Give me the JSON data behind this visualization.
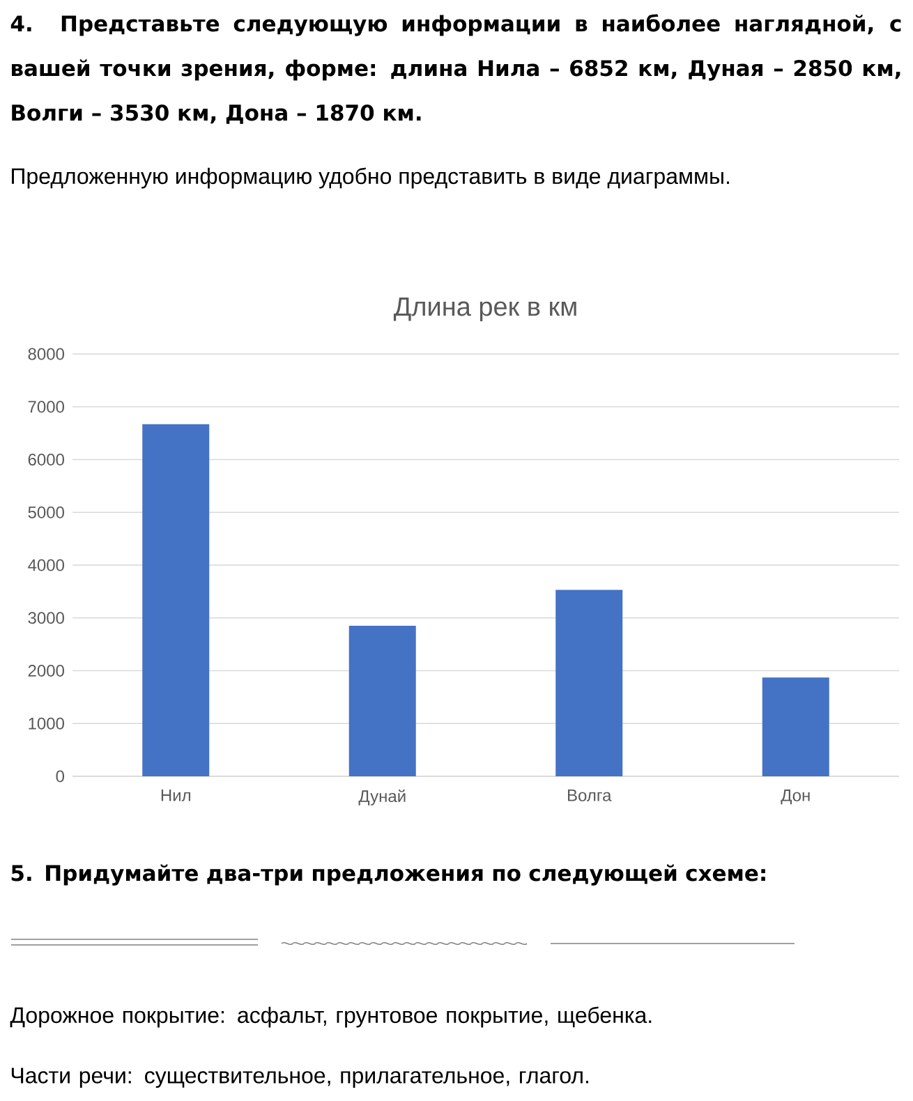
{
  "chart_data": {
    "type": "bar",
    "title": "Длина рек в км",
    "categories": [
      "Нил",
      "Дунай",
      "Волга",
      "Дон"
    ],
    "values": [
      6670,
      2850,
      3530,
      1870
    ],
    "color": "#4472c4",
    "ylim": [
      0,
      8000
    ],
    "yticks": [
      0,
      1000,
      2000,
      3000,
      4000,
      5000,
      6000,
      7000,
      8000
    ],
    "grid": "y",
    "annotations": [
      "4. Представьте следующую информации в наиболее наглядной, с вашей точки зрения, форме: длина Нила – 6852 км, Дуная – 2850 км, Волги – 3530 км, Дона – 1870 км.",
      "Предложенную информацию удобно представить в виде диаграммы.",
      "5. Придумайте два-три предложения по следующей схеме:",
      "Дорожное покрытие: асфальт, грунтовое покрытие, щебенка.",
      "Части речи: существительное, прилагательное, глагол."
    ]
  }
}
